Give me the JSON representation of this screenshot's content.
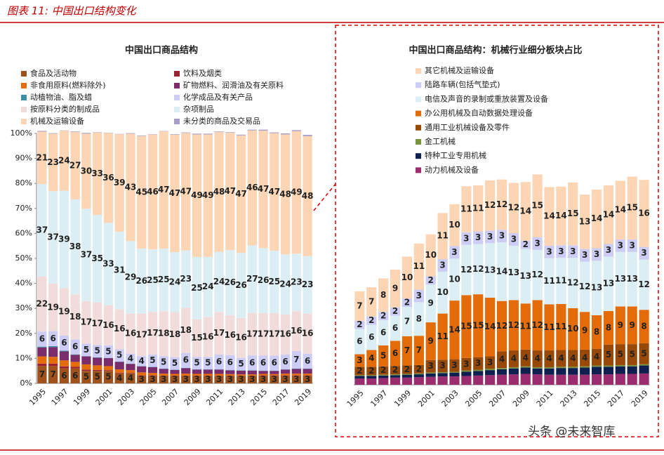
{
  "header": {
    "title": "图表 11: 中国出口结构变化",
    "watermark": "头条 @未来智库"
  },
  "chart_data": [
    {
      "type": "stacked_bar",
      "title": "中国出口商品结构",
      "categories": [
        "1995",
        null,
        "1997",
        null,
        "1999",
        null,
        "2001",
        null,
        "2003",
        null,
        "2005",
        null,
        "2007",
        null,
        "2009",
        null,
        "2011",
        null,
        "2013",
        null,
        "2015",
        null,
        "2017",
        null,
        "2019"
      ],
      "ylim": [
        0,
        100
      ],
      "yticks": [
        {
          "value": 0,
          "label": "0%"
        },
        {
          "value": 10,
          "label": "10%"
        },
        {
          "value": 20,
          "label": "20%"
        },
        {
          "value": 30,
          "label": "30%"
        },
        {
          "value": 40,
          "label": "40%"
        },
        {
          "value": 50,
          "label": "50%"
        },
        {
          "value": 60,
          "label": "60%"
        },
        {
          "value": 70,
          "label": "70%"
        },
        {
          "value": 80,
          "label": "80%"
        },
        {
          "value": 90,
          "label": "90%"
        },
        {
          "value": 100,
          "label": "100%"
        }
      ],
      "legend_reversed": false,
      "series": [
        {
          "name": "食品及活动物",
          "color": "#a0521d",
          "data_labels": true,
          "values": [
            7,
            7,
            6,
            6,
            5,
            5,
            5,
            4,
            4,
            3,
            3,
            3,
            3,
            3,
            3,
            3,
            3,
            3,
            3,
            3,
            3,
            3,
            3,
            3,
            3
          ]
        },
        {
          "name": "饮料及烟类",
          "color": "#9b2335",
          "values": [
            0.9,
            0.9,
            0.8,
            0.6,
            0.5,
            0.4,
            0.3,
            0.3,
            0.2,
            0.2,
            0.2,
            0.1,
            0.1,
            0.1,
            0.1,
            0.1,
            0.1,
            0.1,
            0.1,
            0.1,
            0.2,
            0.2,
            0.2,
            0.2,
            0.2
          ]
        },
        {
          "name": "非食用原料(燃料除外)",
          "color": "#e46c0a",
          "values": [
            2.9,
            2.7,
            2.4,
            2.0,
            2.1,
            1.8,
            1.6,
            1.3,
            1.1,
            1.2,
            1.0,
            0.8,
            0.7,
            0.8,
            0.7,
            0.7,
            0.7,
            0.6,
            0.5,
            0.5,
            0.6,
            0.5,
            0.7,
            0.7,
            0.7
          ]
        },
        {
          "name": "矿物燃料、润滑油及有关原料",
          "color": "#7b2d6b",
          "values": [
            3.6,
            3.9,
            3.6,
            2.8,
            3.2,
            3.1,
            3.2,
            3.0,
            2.5,
            2.4,
            2.3,
            1.9,
            1.6,
            2.2,
            1.7,
            1.7,
            1.7,
            1.5,
            1.5,
            1.5,
            1.2,
            1.3,
            1.6,
            1.9,
            1.9
          ]
        },
        {
          "name": "动植物油、脂及蜡",
          "color": "#3a8fa8",
          "values": [
            0.3,
            0.4,
            0.3,
            0.2,
            0.1,
            0.1,
            0.1,
            0.1,
            0.1,
            0.1,
            0.1,
            0.1,
            0.1,
            0.1,
            0.1,
            0.1,
            0.1,
            0.1,
            0.1,
            0.1,
            0.1,
            0.1,
            0.1,
            0.1,
            0.1
          ]
        },
        {
          "name": "化学成品及有关产品",
          "color": "#ccccf5",
          "data_labels": true,
          "values": [
            6,
            6,
            6,
            6,
            5,
            5,
            5,
            5,
            4,
            4,
            5,
            5,
            5,
            6,
            5,
            5,
            6,
            6,
            5,
            6,
            6,
            6,
            6,
            7,
            6
          ]
        },
        {
          "name": "按原料分类的制成品",
          "color": "#f2dcdb",
          "data_labels": true,
          "values": [
            22,
            19,
            19,
            18,
            17,
            17,
            16,
            16,
            16,
            17,
            17,
            18,
            18,
            18,
            15,
            16,
            17,
            16,
            16,
            17,
            17,
            17,
            16,
            16,
            16
          ]
        },
        {
          "name": "杂项制品",
          "color": "#dbeef4",
          "data_labels": true,
          "values": [
            37,
            37,
            39,
            38,
            37,
            35,
            33,
            31,
            29,
            26,
            25,
            25,
            24,
            23,
            25,
            24,
            24,
            26,
            26,
            27,
            26,
            25,
            24,
            23,
            23
          ]
        },
        {
          "name": "机械及运输设备",
          "color": "#fcd5b4",
          "data_labels": true,
          "values": [
            21,
            23,
            24,
            27,
            30,
            33,
            36,
            39,
            43,
            45,
            46,
            47,
            47,
            47,
            49,
            49,
            48,
            47,
            47,
            46,
            47,
            47,
            48,
            49,
            48
          ]
        },
        {
          "name": "未分类的商品及交易品",
          "color": "#a79bc8",
          "values": [
            0.3,
            0.2,
            0.1,
            0.2,
            0.3,
            0.1,
            0.1,
            0.1,
            0.2,
            0.2,
            0.1,
            0.1,
            0.2,
            0.2,
            0.3,
            0.3,
            0.2,
            0.2,
            0.3,
            0.3,
            0.4,
            0.3,
            0.4,
            0.4,
            0.5
          ]
        }
      ]
    },
    {
      "type": "stacked_bar",
      "title": "中国出口商品结构：机械行业细分板块占比",
      "categories": [
        "1995",
        null,
        "1997",
        null,
        "1999",
        null,
        "2001",
        null,
        "2003",
        null,
        "2005",
        null,
        "2007",
        null,
        "2009",
        null,
        "2011",
        null,
        "2013",
        null,
        "2015",
        null,
        "2017",
        null,
        "2019"
      ],
      "ylim": [
        0,
        60
      ],
      "legend_reversed": true,
      "series": [
        {
          "name": "其它机械及运输设备",
          "color": "#fcd5b4",
          "data_labels": true,
          "values": [
            7,
            7,
            8,
            9,
            10,
            11,
            10,
            11,
            10,
            11,
            11,
            12,
            12,
            12,
            14,
            15,
            14,
            14,
            15,
            13,
            14,
            14,
            14,
            15,
            16
          ]
        },
        {
          "name": "陆路车辆(包括气垫式)",
          "color": "#ccccf5",
          "data_labels": true,
          "values": [
            2,
            2,
            2,
            2,
            2,
            3,
            2,
            3,
            3,
            3,
            3,
            3,
            3,
            3,
            2,
            3,
            3,
            3,
            3,
            3,
            3,
            3,
            3,
            3,
            3
          ]
        },
        {
          "name": "电信及声音的录制或重放装置及设备",
          "color": "#dbeef4",
          "data_labels": true,
          "values": [
            6,
            6,
            6,
            6,
            7,
            8,
            9,
            10,
            10,
            12,
            12,
            13,
            14,
            13,
            13,
            12,
            11,
            11,
            12,
            12,
            13,
            13,
            13,
            13,
            12
          ]
        },
        {
          "name": "办公用机械及自动数据处理设备",
          "color": "#e36c09",
          "data_labels": true,
          "values": [
            3,
            4,
            5,
            6,
            7,
            7,
            9,
            11,
            14,
            15,
            15,
            14,
            12,
            12,
            11,
            12,
            11,
            11,
            10,
            9,
            8,
            8,
            9,
            9,
            8
          ]
        },
        {
          "name": "通用工业机械设备及零件",
          "color": "#984807",
          "data_labels": true,
          "values": [
            2,
            2,
            2,
            2,
            2,
            2,
            3,
            3,
            3,
            3,
            3,
            3,
            4,
            4,
            4,
            4,
            4,
            4,
            4,
            4,
            4,
            5,
            5,
            5,
            5
          ]
        },
        {
          "name": "金工机械",
          "color": "#77933c",
          "values": [
            0.2,
            0.2,
            0.2,
            0.2,
            0.2,
            0.2,
            0.2,
            0.2,
            0.2,
            0.3,
            0.3,
            0.3,
            0.3,
            0.3,
            0.3,
            0.3,
            0.3,
            0.3,
            0.3,
            0.3,
            0.3,
            0.3,
            0.3,
            0.3,
            0.3
          ]
        },
        {
          "name": "特种工业专用机械",
          "color": "#0f1f4f",
          "values": [
            0.6,
            0.6,
            0.6,
            0.6,
            0.7,
            0.7,
            0.8,
            0.8,
            0.9,
            1.0,
            1.1,
            1.2,
            1.3,
            1.4,
            1.5,
            1.4,
            1.5,
            1.6,
            1.6,
            1.7,
            1.8,
            1.8,
            1.8,
            1.8,
            1.9
          ]
        },
        {
          "name": "动力机械及设备",
          "color": "#9b2d6e",
          "values": [
            1.5,
            1.5,
            1.6,
            1.7,
            1.7,
            1.8,
            1.9,
            2.0,
            2.0,
            2.1,
            2.2,
            2.3,
            2.4,
            2.5,
            2.6,
            2.5,
            2.4,
            2.4,
            2.4,
            2.4,
            2.5,
            2.5,
            2.6,
            2.6,
            2.7
          ]
        }
      ]
    }
  ]
}
